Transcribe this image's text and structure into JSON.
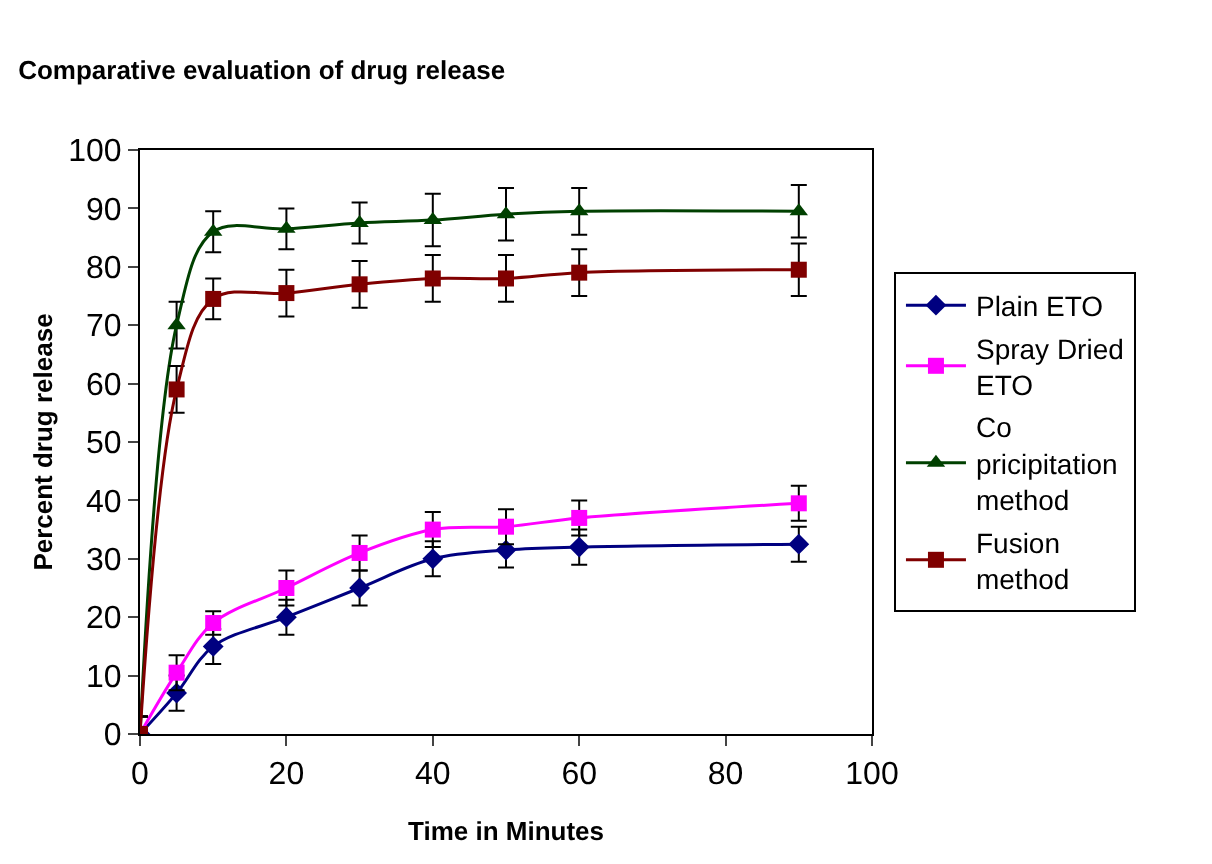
{
  "chart_data": {
    "type": "line",
    "title": "Comparative evaluation of drug release",
    "xlabel": "Time in Minutes",
    "ylabel": "Percent drug release",
    "x": [
      0,
      5,
      10,
      20,
      30,
      40,
      50,
      60,
      90
    ],
    "xlim": [
      0,
      100
    ],
    "xticks": [
      0,
      20,
      40,
      60,
      80,
      100
    ],
    "ylim": [
      0,
      100
    ],
    "yticks": [
      0,
      10,
      20,
      30,
      40,
      50,
      60,
      70,
      80,
      90,
      100
    ],
    "legend": "right",
    "line_style": "solid",
    "series": [
      {
        "name": "Plain ETO",
        "color": "#000080",
        "marker": "diamond",
        "values": [
          0,
          7,
          15,
          20,
          25,
          30,
          31.5,
          32,
          32.5
        ],
        "errors": [
          3,
          3,
          3,
          3,
          3,
          3,
          3,
          3,
          3
        ]
      },
      {
        "name": "Spray Dried ETO",
        "color": "#ff00ff",
        "marker": "square",
        "values": [
          0,
          10.5,
          19,
          25,
          31,
          35,
          35.5,
          37,
          39.5
        ],
        "errors": [
          3,
          3,
          2,
          3,
          3,
          3,
          3,
          3,
          3
        ]
      },
      {
        "name": "Co pricipitation method",
        "color": "#004000",
        "marker": "triangle",
        "values": [
          0,
          70,
          86,
          86.5,
          87.5,
          88,
          89,
          89.5,
          89.5
        ],
        "errors": [
          3,
          4,
          3.5,
          3.5,
          3.5,
          4.5,
          4.5,
          4,
          4.5
        ]
      },
      {
        "name": "Fusion method",
        "color": "#800000",
        "marker": "square",
        "values": [
          0,
          59,
          74.5,
          75.5,
          77,
          78,
          78,
          79,
          79.5
        ],
        "errors": [
          3,
          4,
          3.5,
          4,
          4,
          4,
          4,
          4,
          4.5
        ]
      }
    ]
  }
}
